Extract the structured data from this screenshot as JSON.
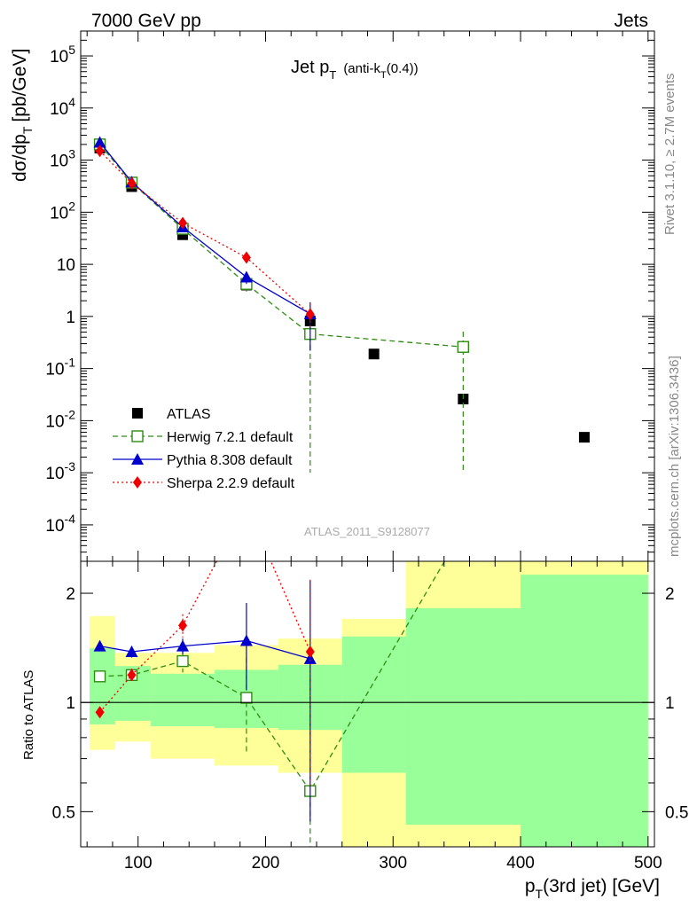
{
  "header": {
    "left": "7000 GeV pp",
    "right": "Jets"
  },
  "main_plot": {
    "title_main": "Jet p",
    "title_sub1": "T",
    "title_paren": "(anti-k",
    "title_sub2": "T",
    "title_tail": "(0.4))",
    "ylabel": "dσ/dp",
    "ylabel_sub": "T",
    "ylabel_unit": "[pb/GeV]",
    "analysis_tag": "ATLAS_2011_S9128077"
  },
  "side_labels": {
    "rivet": "Rivet 3.1.10, ≥ 2.7M events",
    "mcplots": "mcplots.cern.ch [arXiv:1306.3436]"
  },
  "ratio_plot": {
    "ylabel": "Ratio to ATLAS"
  },
  "xaxis": {
    "label_main": "p",
    "label_sub": "T",
    "label_tail": "(3rd jet) [GeV]"
  },
  "legend": [
    {
      "key": "atlas",
      "label": "ATLAS"
    },
    {
      "key": "herwig",
      "label": "Herwig 7.2.1 default"
    },
    {
      "key": "pythia",
      "label": "Pythia 8.308 default"
    },
    {
      "key": "sherpa",
      "label": "Sherpa 2.2.9 default"
    }
  ],
  "colors": {
    "atlas": "#000000",
    "herwig": "#2e8b12",
    "pythia": "#0000cc",
    "sherpa": "#ee0000",
    "band_inner": "#99ff99",
    "band_outer": "#ffff99"
  },
  "chart_data": [
    {
      "type": "scatter",
      "xlim": [
        55,
        505
      ],
      "ylim": [
        2e-05,
        300000.0
      ],
      "yscale": "log",
      "ytick_labels": [
        "10^-4",
        "10^-3",
        "10^-2",
        "10^-1",
        "1",
        "10",
        "10^2",
        "10^3",
        "10^4",
        "10^5"
      ],
      "series": [
        {
          "name": "ATLAS",
          "x": [
            70,
            95,
            135,
            185,
            235,
            285,
            355,
            450
          ],
          "y": [
            1700,
            310,
            37,
            4.0,
            0.82,
            0.19,
            0.026,
            0.0048
          ]
        },
        {
          "name": "Herwig 7.2.1 default",
          "x": [
            70,
            95,
            135,
            185,
            235,
            355
          ],
          "y": [
            2000,
            370,
            48,
            4.2,
            0.46,
            0.26
          ],
          "yerr_up": [
            250,
            55,
            8,
            1.4,
            0.9,
            0.25
          ],
          "yerr_down": [
            250,
            55,
            8,
            1.4,
            0.459,
            0.259
          ]
        },
        {
          "name": "Pythia 8.308 default",
          "x": [
            70,
            95,
            135,
            185,
            235
          ],
          "y": [
            2200,
            380,
            52,
            5.7,
            1.12
          ],
          "yerr_up": [
            120,
            30,
            5,
            1.5,
            0.75
          ],
          "yerr_down": [
            120,
            30,
            5,
            1.5,
            0.9
          ]
        },
        {
          "name": "Sherpa 2.2.9 default",
          "x": [
            70,
            95,
            135,
            185,
            235
          ],
          "y": [
            1500,
            360,
            62,
            13.5,
            1.1
          ],
          "yerr_up": [
            100,
            30,
            6,
            2,
            0.7
          ],
          "yerr_down": [
            100,
            30,
            6,
            2,
            0.5
          ]
        }
      ]
    },
    {
      "type": "line",
      "xlabel": "pT(3rd jet) [GeV]",
      "ylabel": "Ratio to ATLAS",
      "xlim": [
        55,
        505
      ],
      "ylim": [
        0.4,
        2.45
      ],
      "yscale": "log",
      "xticks": [
        100,
        200,
        300,
        400,
        500
      ],
      "yticks": [
        0.5,
        1,
        2
      ],
      "reference_line": 1,
      "bands": [
        {
          "xlo": 62,
          "xhi": 82,
          "inner": [
            0.87,
            1.41
          ],
          "outer": [
            0.74,
            1.73
          ]
        },
        {
          "xlo": 82,
          "xhi": 110,
          "inner": [
            0.89,
            1.26
          ],
          "outer": [
            0.78,
            1.37
          ]
        },
        {
          "xlo": 110,
          "xhi": 160,
          "inner": [
            0.86,
            1.2
          ],
          "outer": [
            0.7,
            1.37
          ]
        },
        {
          "xlo": 160,
          "xhi": 210,
          "inner": [
            0.85,
            1.23
          ],
          "outer": [
            0.67,
            1.44
          ]
        },
        {
          "xlo": 210,
          "xhi": 260,
          "inner": [
            0.84,
            1.27
          ],
          "outer": [
            0.64,
            1.5
          ]
        },
        {
          "xlo": 260,
          "xhi": 310,
          "inner": [
            0.64,
            1.52
          ],
          "outer": [
            0.36,
            1.7
          ]
        },
        {
          "xlo": 310,
          "xhi": 400,
          "inner": [
            0.46,
            1.82
          ],
          "outer": [
            0.36,
            2.6
          ]
        },
        {
          "xlo": 400,
          "xhi": 500,
          "inner": [
            0.36,
            2.25
          ],
          "outer": [
            0.36,
            2.6
          ]
        }
      ],
      "series": [
        {
          "name": "Herwig 7.2.1 default",
          "x": [
            70,
            95,
            135,
            185,
            235
          ],
          "y": [
            1.18,
            1.19,
            1.3,
            1.03,
            0.57
          ],
          "yerr": [
            0,
            0.04,
            0.09,
            0.3,
            0.6
          ],
          "extends_to": [
            355,
            3.0
          ]
        },
        {
          "name": "Pythia 8.308 default",
          "x": [
            70,
            95,
            135,
            185,
            235
          ],
          "y": [
            1.43,
            1.38,
            1.43,
            1.48,
            1.32
          ],
          "yerr": [
            0.03,
            0.05,
            0.07,
            0.4,
            0.85
          ]
        },
        {
          "name": "Sherpa 2.2.9 default",
          "x": [
            70,
            95,
            135,
            185,
            235
          ],
          "y": [
            0.94,
            1.19,
            1.63,
            3.5,
            1.38
          ],
          "yerr": [
            0.03,
            0.05,
            0.12,
            0,
            0.8
          ]
        }
      ]
    }
  ]
}
